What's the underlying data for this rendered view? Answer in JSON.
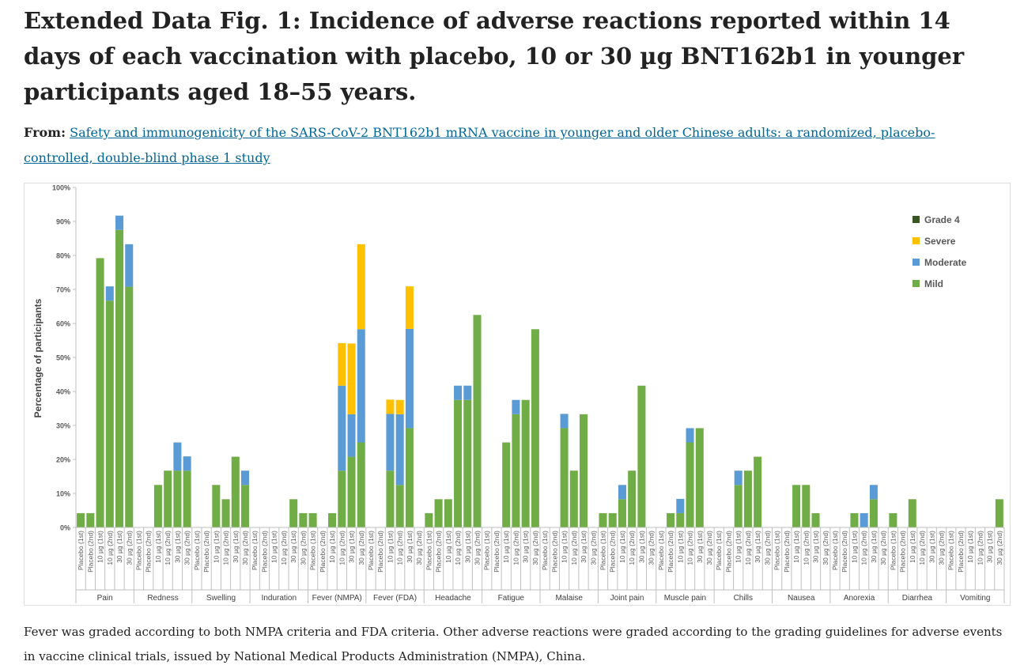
{
  "page": {
    "title": "Extended Data Fig. 1: Incidence of adverse reactions reported within 14 days of each vaccination with placebo, 10 or 30  µg BNT162b1 in younger participants aged 18–55 years.",
    "from_label": "From:",
    "from_link": "Safety and immunogenicity of the SARS-CoV-2 BNT162b1 mRNA vaccine in younger and older Chinese adults: a randomized, placebo-controlled, double-blind phase 1 study",
    "caption": "Fever was graded according to both NMPA criteria and FDA criteria. Other adverse reactions were graded according to the grading guidelines for adverse events in vaccine clinical trials, issued by National Medical Products Administration (NMPA), China."
  },
  "chart_data": {
    "type": "bar",
    "stacked": true,
    "title": "",
    "xlabel": "",
    "ylabel": "Percentage of participants",
    "ylim": [
      0,
      100
    ],
    "y_ticks": [
      "0%",
      "10%",
      "20%",
      "30%",
      "40%",
      "50%",
      "60%",
      "70%",
      "80%",
      "90%",
      "100%"
    ],
    "grid": false,
    "legend_position": "top-right",
    "colors": {
      "Mild": "#70ad47",
      "Moderate": "#5b9bd5",
      "Severe": "#ffc000",
      "Grade 4": "#375623"
    },
    "legend_order": [
      "Grade 4",
      "Severe",
      "Moderate",
      "Mild"
    ],
    "subcategories": [
      "Placebo (1st)",
      "Placebo (2nd)",
      "10 µg (1st)",
      "10 µg (2nd)",
      "30 µg (1st)",
      "30 µg (2nd)"
    ],
    "groups": [
      "Pain",
      "Redness",
      "Swelling",
      "Induration",
      "Fever (NMPA)",
      "Fever (FDA)",
      "Headache",
      "Fatigue",
      "Malaise",
      "Joint pain",
      "Muscle pain",
      "Chills",
      "Nausea",
      "Anorexia",
      "Diarrhea",
      "Vomiting"
    ],
    "series": [
      {
        "name": "Mild",
        "values": [
          [
            4.2,
            4.2,
            79.2,
            66.7,
            87.5,
            70.8
          ],
          [
            0,
            0,
            12.5,
            16.7,
            16.7,
            16.7
          ],
          [
            0,
            0,
            12.5,
            8.3,
            20.8,
            12.5
          ],
          [
            0,
            0,
            0,
            0,
            8.3,
            4.2
          ],
          [
            4.2,
            0,
            4.2,
            16.7,
            20.8,
            25.0
          ],
          [
            0,
            0,
            16.7,
            12.5,
            29.2,
            0
          ],
          [
            4.2,
            8.3,
            8.3,
            37.5,
            37.5,
            62.5
          ],
          [
            0,
            0,
            25.0,
            33.3,
            37.5,
            58.3
          ],
          [
            0,
            0,
            29.2,
            16.7,
            33.3,
            0
          ],
          [
            4.2,
            4.2,
            8.3,
            16.7,
            41.7,
            0
          ],
          [
            0,
            4.2,
            4.2,
            25.0,
            29.2,
            0
          ],
          [
            0,
            0,
            12.5,
            16.7,
            20.8,
            0
          ],
          [
            0,
            0,
            12.5,
            12.5,
            4.2,
            0
          ],
          [
            0,
            0,
            4.2,
            0,
            8.3,
            0
          ],
          [
            4.2,
            0,
            8.3,
            0,
            0,
            0
          ],
          [
            0,
            0,
            0,
            0,
            0,
            8.3
          ]
        ]
      },
      {
        "name": "Moderate",
        "values": [
          [
            0,
            0,
            0,
            4.2,
            4.2,
            12.5
          ],
          [
            0,
            0,
            0,
            0,
            8.3,
            4.2
          ],
          [
            0,
            0,
            0,
            0,
            0,
            4.2
          ],
          [
            0,
            0,
            0,
            0,
            0,
            0
          ],
          [
            0,
            0,
            0,
            25.0,
            12.5,
            33.3
          ],
          [
            0,
            0,
            16.7,
            20.8,
            29.2,
            0
          ],
          [
            0,
            0,
            0,
            4.2,
            4.2,
            0
          ],
          [
            0,
            0,
            0,
            4.2,
            0,
            0
          ],
          [
            0,
            0,
            4.2,
            0,
            0,
            0
          ],
          [
            0,
            0,
            4.2,
            0,
            0,
            0
          ],
          [
            0,
            0,
            4.2,
            4.2,
            0,
            0
          ],
          [
            0,
            0,
            4.2,
            0,
            0,
            0
          ],
          [
            0,
            0,
            0,
            0,
            0,
            0
          ],
          [
            0,
            0,
            0,
            4.2,
            4.2,
            0
          ],
          [
            0,
            0,
            0,
            0,
            0,
            0
          ],
          [
            0,
            0,
            0,
            0,
            0,
            0
          ]
        ]
      },
      {
        "name": "Severe",
        "values": [
          [
            0,
            0,
            0,
            0,
            0,
            0
          ],
          [
            0,
            0,
            0,
            0,
            0,
            0
          ],
          [
            0,
            0,
            0,
            0,
            0,
            0
          ],
          [
            0,
            0,
            0,
            0,
            0,
            0
          ],
          [
            0,
            0,
            0,
            12.5,
            20.8,
            25.0
          ],
          [
            0,
            0,
            4.2,
            4.2,
            12.5,
            0
          ],
          [
            0,
            0,
            0,
            0,
            0,
            0
          ],
          [
            0,
            0,
            0,
            0,
            0,
            0
          ],
          [
            0,
            0,
            0,
            0,
            0,
            0
          ],
          [
            0,
            0,
            0,
            0,
            0,
            0
          ],
          [
            0,
            0,
            0,
            0,
            0,
            0
          ],
          [
            0,
            0,
            0,
            0,
            0,
            0
          ],
          [
            0,
            0,
            0,
            0,
            0,
            0
          ],
          [
            0,
            0,
            0,
            0,
            0,
            0
          ],
          [
            0,
            0,
            0,
            0,
            0,
            0
          ],
          [
            0,
            0,
            0,
            0,
            0,
            0
          ]
        ]
      },
      {
        "name": "Grade 4",
        "values": [
          [
            0,
            0,
            0,
            0,
            0,
            0
          ],
          [
            0,
            0,
            0,
            0,
            0,
            0
          ],
          [
            0,
            0,
            0,
            0,
            0,
            0
          ],
          [
            0,
            0,
            0,
            0,
            0,
            0
          ],
          [
            0,
            0,
            0,
            0,
            0,
            0
          ],
          [
            0,
            0,
            0,
            0,
            0,
            0
          ],
          [
            0,
            0,
            0,
            0,
            0,
            0
          ],
          [
            0,
            0,
            0,
            0,
            0,
            0
          ],
          [
            0,
            0,
            0,
            0,
            0,
            0
          ],
          [
            0,
            0,
            0,
            0,
            0,
            0
          ],
          [
            0,
            0,
            0,
            0,
            0,
            0
          ],
          [
            0,
            0,
            0,
            0,
            0,
            0
          ],
          [
            0,
            0,
            0,
            0,
            0,
            0
          ],
          [
            0,
            0,
            0,
            0,
            0,
            0
          ],
          [
            0,
            0,
            0,
            0,
            0,
            0
          ],
          [
            0,
            0,
            0,
            0,
            0,
            0
          ]
        ]
      }
    ]
  }
}
